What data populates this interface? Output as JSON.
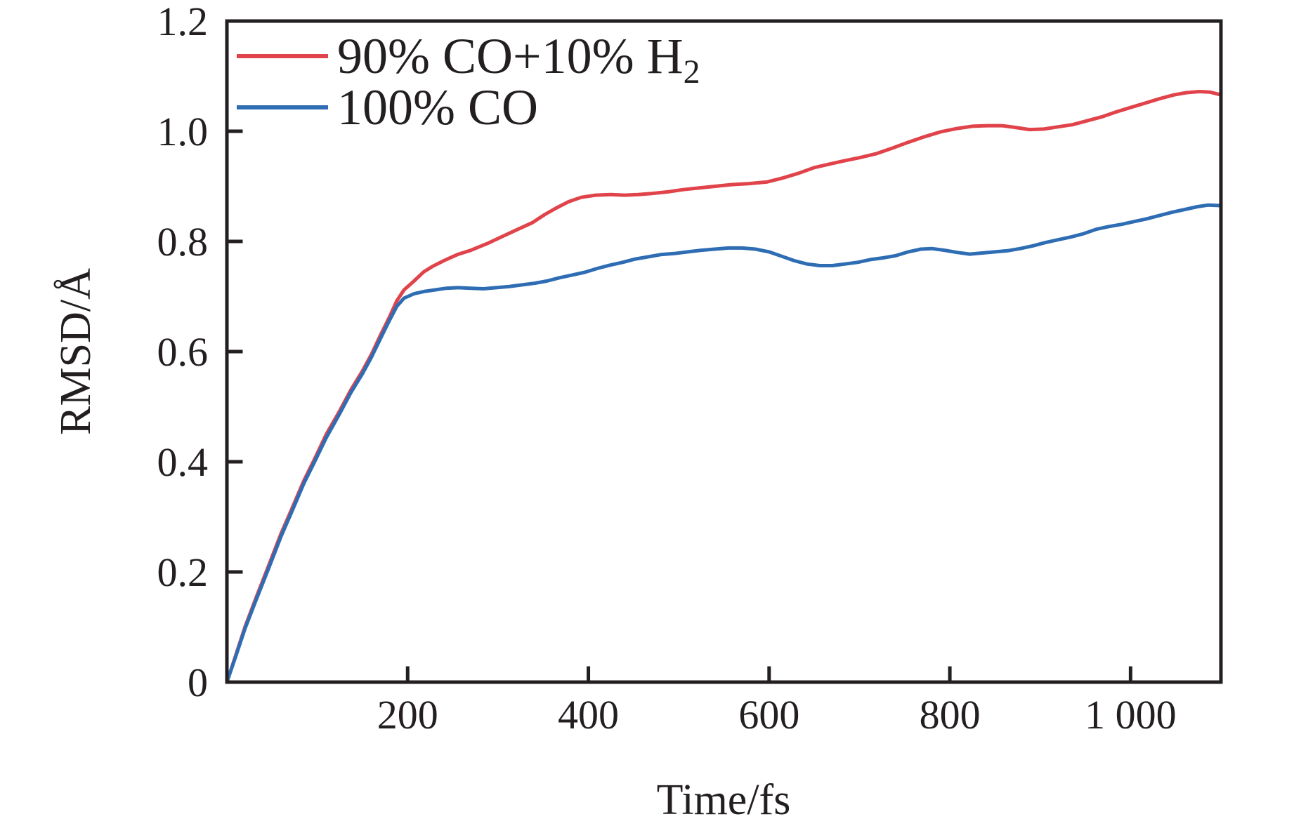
{
  "chart_data": {
    "type": "line",
    "title": "",
    "xlabel": "Time/fs",
    "ylabel": "RMSD/Å",
    "xlim": [
      0,
      1100
    ],
    "ylim": [
      0,
      1.2
    ],
    "grid": false,
    "legend_position": "top-left",
    "x_ticks": [
      {
        "value": 200,
        "label": "200"
      },
      {
        "value": 400,
        "label": "400"
      },
      {
        "value": 600,
        "label": "600"
      },
      {
        "value": 800,
        "label": "800"
      },
      {
        "value": 1000,
        "label": "1 000"
      }
    ],
    "y_ticks": [
      {
        "value": 0,
        "label": "0"
      },
      {
        "value": 0.2,
        "label": "0.2"
      },
      {
        "value": 0.4,
        "label": "0.4"
      },
      {
        "value": 0.6,
        "label": "0.6"
      },
      {
        "value": 0.8,
        "label": "0.8"
      },
      {
        "value": 1.0,
        "label": "1.0"
      },
      {
        "value": 1.2,
        "label": "1.2"
      }
    ],
    "legend": {
      "items": [
        {
          "main": "90% CO+10% H",
          "sub": "2"
        },
        {
          "main": "100% CO",
          "sub": ""
        }
      ]
    },
    "series": [
      {
        "name": "90% CO+10% H2",
        "color": "#e0434a",
        "points": [
          [
            0,
            0
          ],
          [
            10,
            0.05
          ],
          [
            20,
            0.1
          ],
          [
            32,
            0.152
          ],
          [
            47,
            0.215
          ],
          [
            60,
            0.27
          ],
          [
            72,
            0.315
          ],
          [
            85,
            0.365
          ],
          [
            97,
            0.405
          ],
          [
            110,
            0.45
          ],
          [
            124,
            0.49
          ],
          [
            137,
            0.53
          ],
          [
            150,
            0.565
          ],
          [
            160,
            0.595
          ],
          [
            170,
            0.63
          ],
          [
            180,
            0.663
          ],
          [
            188,
            0.692
          ],
          [
            196,
            0.712
          ],
          [
            207,
            0.728
          ],
          [
            218,
            0.745
          ],
          [
            228,
            0.755
          ],
          [
            240,
            0.765
          ],
          [
            255,
            0.776
          ],
          [
            270,
            0.784
          ],
          [
            288,
            0.796
          ],
          [
            305,
            0.809
          ],
          [
            322,
            0.822
          ],
          [
            338,
            0.834
          ],
          [
            352,
            0.849
          ],
          [
            365,
            0.861
          ],
          [
            378,
            0.872
          ],
          [
            392,
            0.88
          ],
          [
            408,
            0.884
          ],
          [
            425,
            0.885
          ],
          [
            440,
            0.884
          ],
          [
            455,
            0.885
          ],
          [
            470,
            0.887
          ],
          [
            488,
            0.89
          ],
          [
            505,
            0.894
          ],
          [
            522,
            0.897
          ],
          [
            540,
            0.9
          ],
          [
            558,
            0.903
          ],
          [
            578,
            0.905
          ],
          [
            598,
            0.908
          ],
          [
            615,
            0.915
          ],
          [
            633,
            0.924
          ],
          [
            650,
            0.934
          ],
          [
            666,
            0.94
          ],
          [
            682,
            0.946
          ],
          [
            700,
            0.952
          ],
          [
            718,
            0.959
          ],
          [
            736,
            0.969
          ],
          [
            754,
            0.98
          ],
          [
            772,
            0.99
          ],
          [
            790,
            0.999
          ],
          [
            808,
            1.005
          ],
          [
            825,
            1.009
          ],
          [
            842,
            1.01
          ],
          [
            858,
            1.01
          ],
          [
            872,
            1.007
          ],
          [
            888,
            1.003
          ],
          [
            904,
            1.004
          ],
          [
            920,
            1.008
          ],
          [
            936,
            1.012
          ],
          [
            952,
            1.019
          ],
          [
            968,
            1.026
          ],
          [
            984,
            1.035
          ],
          [
            1000,
            1.043
          ],
          [
            1016,
            1.051
          ],
          [
            1032,
            1.059
          ],
          [
            1048,
            1.066
          ],
          [
            1062,
            1.07
          ],
          [
            1076,
            1.072
          ],
          [
            1088,
            1.071
          ],
          [
            1100,
            1.066
          ]
        ]
      },
      {
        "name": "100% CO",
        "color": "#2e6db4",
        "points": [
          [
            0,
            0
          ],
          [
            10,
            0.048
          ],
          [
            20,
            0.097
          ],
          [
            32,
            0.148
          ],
          [
            47,
            0.21
          ],
          [
            60,
            0.265
          ],
          [
            72,
            0.31
          ],
          [
            85,
            0.36
          ],
          [
            97,
            0.4
          ],
          [
            110,
            0.444
          ],
          [
            124,
            0.485
          ],
          [
            137,
            0.525
          ],
          [
            150,
            0.56
          ],
          [
            160,
            0.59
          ],
          [
            170,
            0.624
          ],
          [
            180,
            0.657
          ],
          [
            188,
            0.682
          ],
          [
            196,
            0.697
          ],
          [
            207,
            0.705
          ],
          [
            218,
            0.709
          ],
          [
            230,
            0.712
          ],
          [
            243,
            0.715
          ],
          [
            256,
            0.716
          ],
          [
            270,
            0.715
          ],
          [
            284,
            0.714
          ],
          [
            298,
            0.716
          ],
          [
            312,
            0.718
          ],
          [
            326,
            0.721
          ],
          [
            340,
            0.724
          ],
          [
            354,
            0.728
          ],
          [
            368,
            0.734
          ],
          [
            382,
            0.739
          ],
          [
            396,
            0.744
          ],
          [
            410,
            0.751
          ],
          [
            424,
            0.757
          ],
          [
            438,
            0.762
          ],
          [
            452,
            0.768
          ],
          [
            466,
            0.772
          ],
          [
            480,
            0.776
          ],
          [
            495,
            0.778
          ],
          [
            510,
            0.781
          ],
          [
            525,
            0.784
          ],
          [
            540,
            0.786
          ],
          [
            555,
            0.788
          ],
          [
            570,
            0.788
          ],
          [
            585,
            0.786
          ],
          [
            600,
            0.781
          ],
          [
            614,
            0.773
          ],
          [
            628,
            0.765
          ],
          [
            642,
            0.759
          ],
          [
            656,
            0.756
          ],
          [
            670,
            0.756
          ],
          [
            684,
            0.759
          ],
          [
            698,
            0.762
          ],
          [
            712,
            0.767
          ],
          [
            726,
            0.77
          ],
          [
            740,
            0.774
          ],
          [
            754,
            0.781
          ],
          [
            768,
            0.786
          ],
          [
            780,
            0.787
          ],
          [
            794,
            0.784
          ],
          [
            808,
            0.78
          ],
          [
            822,
            0.777
          ],
          [
            836,
            0.779
          ],
          [
            850,
            0.781
          ],
          [
            864,
            0.783
          ],
          [
            878,
            0.787
          ],
          [
            892,
            0.792
          ],
          [
            906,
            0.798
          ],
          [
            920,
            0.803
          ],
          [
            934,
            0.808
          ],
          [
            948,
            0.814
          ],
          [
            962,
            0.822
          ],
          [
            976,
            0.827
          ],
          [
            990,
            0.831
          ],
          [
            1004,
            0.836
          ],
          [
            1018,
            0.841
          ],
          [
            1032,
            0.847
          ],
          [
            1046,
            0.853
          ],
          [
            1060,
            0.858
          ],
          [
            1074,
            0.863
          ],
          [
            1086,
            0.866
          ],
          [
            1100,
            0.865
          ]
        ]
      }
    ]
  }
}
